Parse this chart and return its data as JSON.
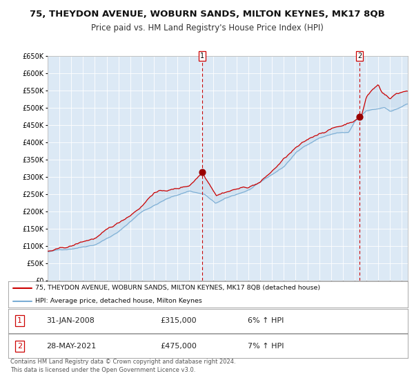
{
  "title": "75, THEYDON AVENUE, WOBURN SANDS, MILTON KEYNES, MK17 8QB",
  "subtitle": "Price paid vs. HM Land Registry's House Price Index (HPI)",
  "x_start_year": 1995,
  "x_end_year": 2025,
  "y_min": 0,
  "y_max": 650000,
  "y_ticks": [
    0,
    50000,
    100000,
    150000,
    200000,
    250000,
    300000,
    350000,
    400000,
    450000,
    500000,
    550000,
    600000,
    650000
  ],
  "background_color": "#ffffff",
  "plot_bg_color": "#dce9f5",
  "grid_color": "#ffffff",
  "red_line_color": "#cc0000",
  "blue_line_color": "#7aadd4",
  "sale1_year": 2008.08,
  "sale1_value": 315000,
  "sale1_label": "1",
  "sale2_year": 2021.41,
  "sale2_value": 475000,
  "sale2_label": "2",
  "legend_line1": "75, THEYDON AVENUE, WOBURN SANDS, MILTON KEYNES, MK17 8QB (detached house)",
  "legend_line2": "HPI: Average price, detached house, Milton Keynes",
  "table_row1": [
    "1",
    "31-JAN-2008",
    "£315,000",
    "6% ↑ HPI"
  ],
  "table_row2": [
    "2",
    "28-MAY-2021",
    "£475,000",
    "7% ↑ HPI"
  ],
  "footnote": "Contains HM Land Registry data © Crown copyright and database right 2024.\nThis data is licensed under the Open Government Licence v3.0.",
  "title_fontsize": 9.5,
  "subtitle_fontsize": 8.5
}
